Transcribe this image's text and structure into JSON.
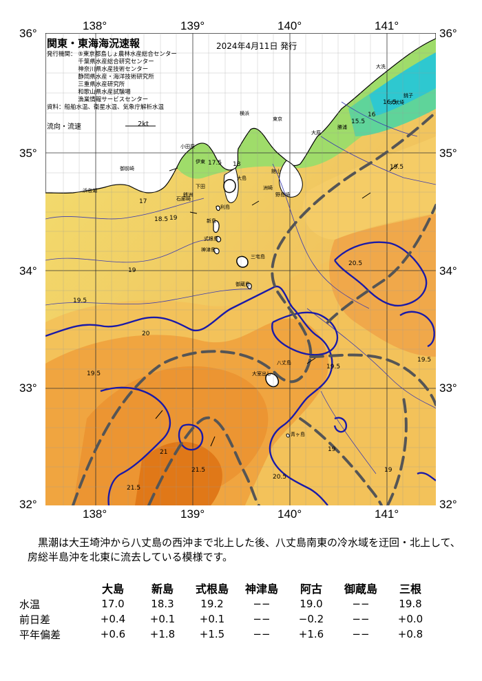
{
  "map": {
    "title": "関東・東海海況速報",
    "date": "2024年4月11日 発行",
    "sources": [
      "発行機関： ⑤東京都島しょ農林水産総合センター",
      "　　　　　 千葉県水産総合研究センター",
      "　　　　　 神奈川県水産技術センター",
      "　　　　　 静岡県水産・海洋技術研究所",
      "　　　　　 三重県水産研究所",
      "　　　　　 和歌山県水産試験場",
      "　　　　　 漁業情報サービスセンター",
      "資料：船舶水温、衛星水温、気象庁解析水温"
    ],
    "current_legend": "流向・流速",
    "current_scale": "2kt",
    "lon_labels": [
      "138°",
      "139°",
      "140°",
      "141°"
    ],
    "lat_labels": [
      "36°",
      "35°",
      "34°",
      "33°",
      "32°"
    ],
    "places": [
      "大洗",
      "銚子",
      "犬吠埼",
      "勝浦",
      "大原",
      "館山",
      "東京",
      "横浜",
      "小田原",
      "伊東",
      "下田",
      "石廊崎",
      "御前崎",
      "浜名湖",
      "大島",
      "利島",
      "新島",
      "式根島",
      "神津島",
      "三宅島",
      "御蔵島",
      "八丈島",
      "青ヶ島",
      "銭洲",
      "大室出し",
      "野島崎",
      "洲崎"
    ],
    "isotherms": [
      "20.5",
      "20",
      "19.5",
      "19",
      "18.5",
      "18",
      "17.5",
      "17",
      "16.5",
      "16",
      "15.5",
      "21",
      "21.5"
    ],
    "colors": {
      "kuroshio_axis": "#555555",
      "isotherm_20": "#1a1aa8",
      "land": "#ffffff",
      "coast": "#000000",
      "cold": "#22c8d8",
      "warm": "#e07818"
    }
  },
  "description": "　黒潮は大王埼沖から八丈島の西沖まで北上した後、八丈島南東の冷水域を迂回・北上して、房総半島沖を北東に流去している模様です。",
  "stats": {
    "columns": [
      "大島",
      "新島",
      "式根島",
      "神津島",
      "阿古",
      "御蔵島",
      "三根"
    ],
    "rows": [
      {
        "label": "水温",
        "values": [
          "17.0",
          "18.3",
          "19.2",
          "−−",
          "19.0",
          "−−",
          "19.8"
        ]
      },
      {
        "label": "前日差",
        "values": [
          "+0.4",
          "+0.1",
          "+0.1",
          "−−",
          "−0.2",
          "−−",
          "+0.0"
        ]
      },
      {
        "label": "平年偏差",
        "values": [
          "+0.6",
          "+1.8",
          "+1.5",
          "−−",
          "+1.6",
          "−−",
          "+0.8"
        ]
      }
    ]
  }
}
